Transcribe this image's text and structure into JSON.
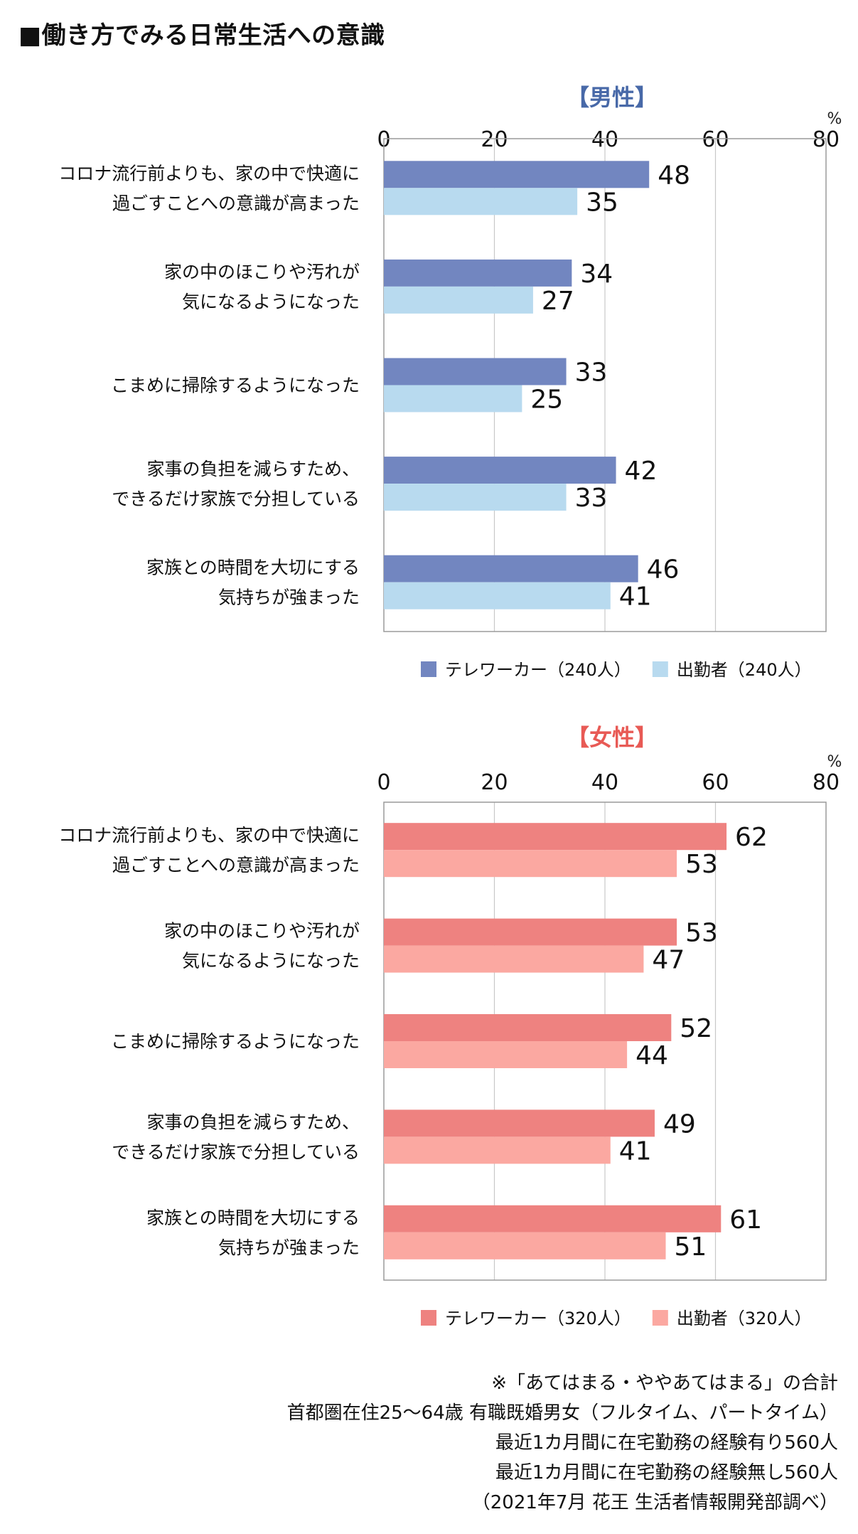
{
  "page": {
    "title": "■働き方でみる日常生活への意識"
  },
  "chart_data": [
    {
      "type": "bar",
      "orientation": "horizontal",
      "title": "【男性】",
      "unit": "%",
      "xlim": [
        0,
        80
      ],
      "ticks": [
        0,
        20,
        40,
        60,
        80
      ],
      "grid": true,
      "legend_position": "bottom",
      "categories": [
        [
          "コロナ流行前よりも、家の中で快適に",
          "過ごすことへの意識が高まった"
        ],
        [
          "家の中のほこりや汚れが",
          "気になるようになった"
        ],
        [
          "こまめに掃除するようになった"
        ],
        [
          "家事の負担を減らすため、",
          "できるだけ家族で分担している"
        ],
        [
          "家族との時間を大切にする",
          "気持ちが強まった"
        ]
      ],
      "series": [
        {
          "name": "テレワーカー（240人）",
          "color": "#7286c0",
          "values": [
            48,
            34,
            33,
            42,
            46
          ]
        },
        {
          "name": "出勤者（240人）",
          "color": "#b8daef",
          "values": [
            35,
            27,
            25,
            33,
            41
          ]
        }
      ],
      "title_color": "#4869a8"
    },
    {
      "type": "bar",
      "orientation": "horizontal",
      "title": "【女性】",
      "unit": "%",
      "xlim": [
        0,
        80
      ],
      "ticks": [
        0,
        20,
        40,
        60,
        80
      ],
      "grid": true,
      "legend_position": "bottom",
      "categories": [
        [
          "コロナ流行前よりも、家の中で快適に",
          "過ごすことへの意識が高まった"
        ],
        [
          "家の中のほこりや汚れが",
          "気になるようになった"
        ],
        [
          "こまめに掃除するようになった"
        ],
        [
          "家事の負担を減らすため、",
          "できるだけ家族で分担している"
        ],
        [
          "家族との時間を大切にする",
          "気持ちが強まった"
        ]
      ],
      "series": [
        {
          "name": "テレワーカー（320人）",
          "color": "#ee8280",
          "values": [
            62,
            53,
            52,
            49,
            61
          ]
        },
        {
          "name": "出勤者（320人）",
          "color": "#fba8a1",
          "values": [
            53,
            47,
            44,
            41,
            51
          ]
        }
      ],
      "title_color": "#e85a55"
    }
  ],
  "notes": [
    "※「あてはまる・ややあてはまる」の合計",
    "首都圏在住25～64歳 有職既婚男女（フルタイム、パートタイム）",
    "最近1カ月間に在宅勤務の経験有り560人",
    "最近1カ月間に在宅勤務の経験無し560人",
    "（2021年7月 花王 生活者情報開発部調べ）"
  ]
}
